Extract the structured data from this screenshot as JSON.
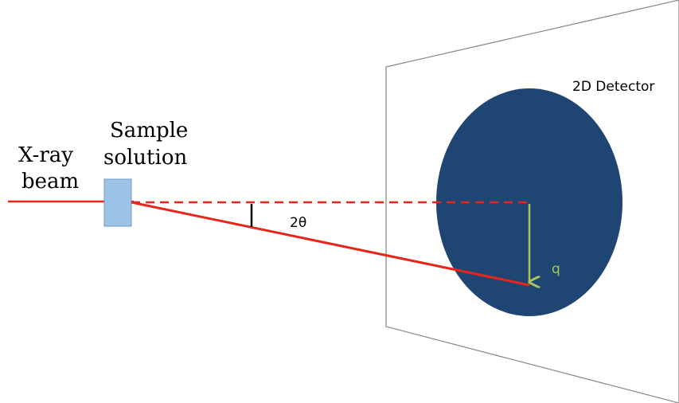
{
  "labels": {
    "beam_line1": "X-ray",
    "beam_line2": "beam",
    "sample_line1": "Sample",
    "sample_line2": "solution",
    "detector": "2D Detector",
    "angle": "2θ",
    "q": "q"
  },
  "colors": {
    "beam": "#e8251b",
    "sample": "#9dc3e6",
    "sample_border": "#6f9bc7",
    "detector_disk": "#1f4573",
    "q_arrow": "#a9c55a",
    "panel_edge": "#8c8c8c",
    "angle_tick": "#000000"
  }
}
